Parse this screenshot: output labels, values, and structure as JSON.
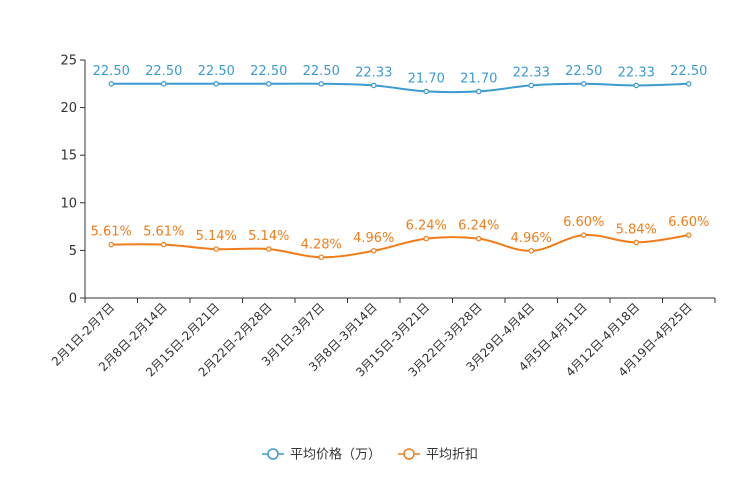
{
  "chart_data": {
    "type": "line",
    "title": "",
    "xlabel": "",
    "ylabel": "",
    "categories": [
      "2月1日-2月7日",
      "2月8日-2月14日",
      "2月15日-2月21日",
      "2月22日-2月28日",
      "3月1日-3月7日",
      "3月8日-3月14日",
      "3月15日-3月21日",
      "3月22日-3月28日",
      "3月29日-4月4日",
      "4月5日-4月11日",
      "4月12日-4月18日",
      "4月19日-4月25日"
    ],
    "ylim": [
      0,
      25
    ],
    "yticks": [
      0,
      5,
      10,
      15,
      20,
      25
    ],
    "grid": false,
    "legend_position": "bottom-center",
    "series": [
      {
        "name": "平均价格（万）",
        "color": "#3d9bd1",
        "values": [
          22.5,
          22.5,
          22.5,
          22.5,
          22.5,
          22.33,
          21.7,
          21.7,
          22.33,
          22.5,
          22.33,
          22.5
        ],
        "labels": [
          "22.50",
          "22.50",
          "22.50",
          "22.50",
          "22.50",
          "22.33",
          "21.70",
          "21.70",
          "22.33",
          "22.50",
          "22.33",
          "22.50"
        ]
      },
      {
        "name": "平均折扣",
        "color": "#f07d1a",
        "values": [
          5.61,
          5.61,
          5.14,
          5.14,
          4.28,
          4.96,
          6.24,
          6.24,
          4.96,
          6.6,
          5.84,
          6.6
        ],
        "labels": [
          "5.61%",
          "5.61%",
          "5.14%",
          "5.14%",
          "4.28%",
          "4.96%",
          "6.24%",
          "6.24%",
          "4.96%",
          "6.60%",
          "5.84%",
          "6.60%"
        ]
      }
    ]
  }
}
